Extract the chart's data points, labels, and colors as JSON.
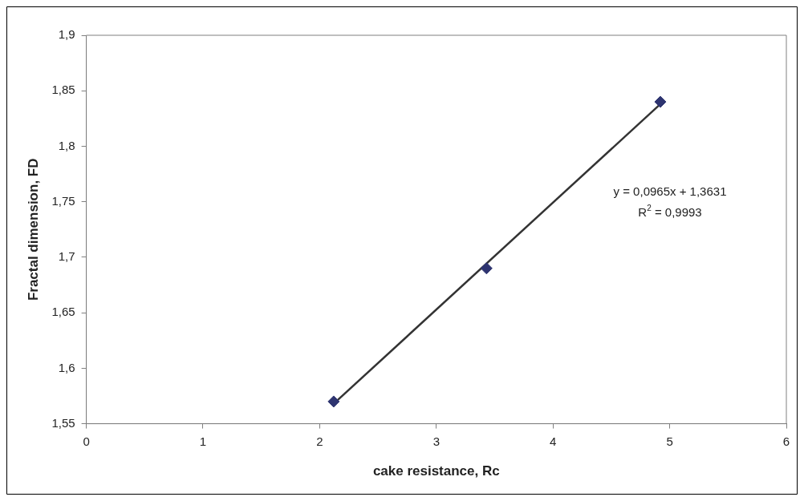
{
  "chart_data": {
    "type": "scatter",
    "xlabel": "cake resistance, Rc",
    "ylabel": "Fractal dimension, FD",
    "x": [
      2.12,
      3.43,
      4.92
    ],
    "series": [
      {
        "color": "#2e3470",
        "values": [
          1.57,
          1.69,
          1.84
        ],
        "marker": "diamond"
      },
      {
        "type": "line",
        "color": "#333333",
        "x": [
          2.12,
          4.92
        ],
        "values": [
          1.568,
          1.838
        ],
        "marker": "none"
      }
    ],
    "xlim": [
      0,
      6
    ],
    "xticks": [
      0,
      1,
      2,
      3,
      4,
      5,
      6
    ],
    "ylim": [
      1.55,
      1.9
    ],
    "yticks": [
      {
        "value": 1.55,
        "label": "1,55"
      },
      {
        "value": 1.6,
        "label": "1,6"
      },
      {
        "value": 1.65,
        "label": "1,65"
      },
      {
        "value": 1.7,
        "label": "1,7"
      },
      {
        "value": 1.75,
        "label": "1,75"
      },
      {
        "value": 1.8,
        "label": "1,8"
      },
      {
        "value": 1.85,
        "label": "1,85"
      },
      {
        "value": 1.9,
        "label": "1,9"
      }
    ],
    "grid": false,
    "legend": false,
    "annotations": [
      "y = 0,0965x + 1,3631",
      "R$^{2}$ = 0,9993"
    ]
  }
}
